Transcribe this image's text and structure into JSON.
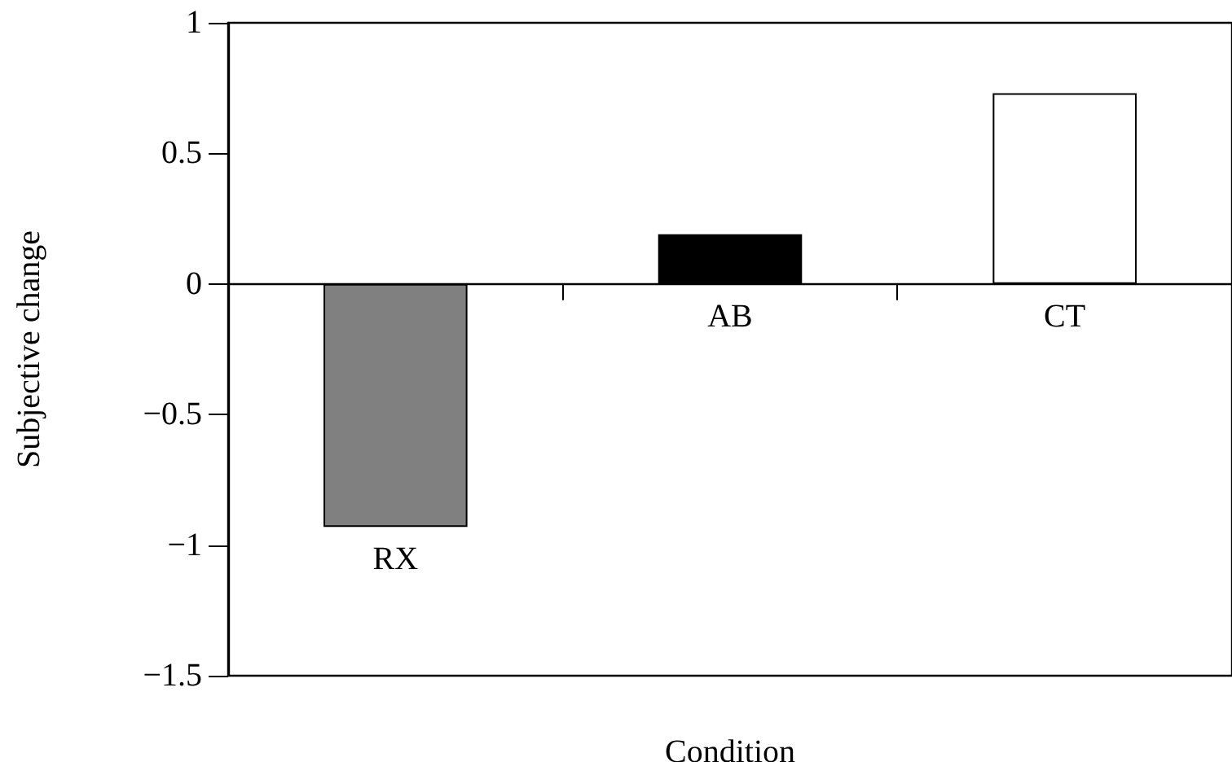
{
  "chart_data": {
    "type": "bar",
    "xlabel": "Condition",
    "ylabel": "Subjective change",
    "categories": [
      "RX",
      "AB",
      "CT"
    ],
    "values": [
      -0.93,
      0.19,
      0.73
    ],
    "colors": [
      "#808080",
      "#000000",
      "#ffffff"
    ],
    "ylim": [
      -1.5,
      1
    ],
    "yticks": [
      -1.5,
      -1,
      -0.5,
      0,
      0.5,
      1
    ],
    "grid": false
  }
}
